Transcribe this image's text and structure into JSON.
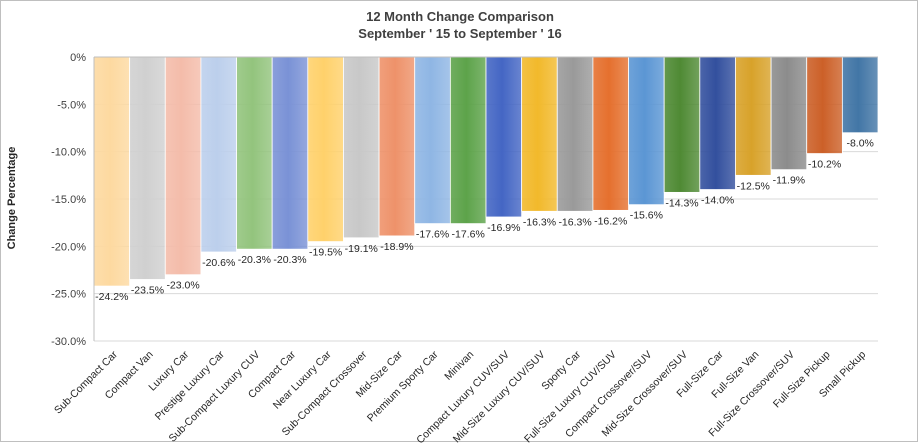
{
  "chart_data": {
    "type": "bar",
    "title": "12 Month Change Comparison",
    "subtitle": "September ' 15 to September ' 16",
    "xlabel": "",
    "ylabel": "Change Percentage",
    "ylim": [
      -30,
      0
    ],
    "yticks": [
      {
        "value": 0,
        "label": "0%"
      },
      {
        "value": -5,
        "label": "-5.0%"
      },
      {
        "value": -10,
        "label": "-10.0%"
      },
      {
        "value": -15,
        "label": "-15.0%"
      },
      {
        "value": -20,
        "label": "-20.0%"
      },
      {
        "value": -25,
        "label": "-25.0%"
      },
      {
        "value": -30,
        "label": "-30.0%"
      }
    ],
    "grid": true,
    "legend": "none",
    "categories": [
      "Sub-Compact Car",
      "Compact Van",
      "Luxury Car",
      "Prestige Luxury Car",
      "Sub-Compact Luxury CUV",
      "Compact Car",
      "Near Luxury Car",
      "Sub-Compact Crossover",
      "Mid-Size Car",
      "Premium Sporty Car",
      "Minivan",
      "Compact Luxury CUV/SUV",
      "Mid-Size Luxury CUV/SUV",
      "Sporty Car",
      "Full-Size Luxury CUV/SUV",
      "Compact Crossover/SUV",
      "Mid-Size Crossover/SUV",
      "Full-Size Car",
      "Full-Size Van",
      "Full-Size Crossover/SUV",
      "Full-Size Pickup",
      "Small Pickup"
    ],
    "values": [
      -24.2,
      -23.5,
      -23.0,
      -20.6,
      -20.3,
      -20.3,
      -19.5,
      -19.1,
      -18.9,
      -17.6,
      -17.6,
      -16.9,
      -16.3,
      -16.3,
      -16.2,
      -15.6,
      -14.3,
      -14.0,
      -12.5,
      -11.9,
      -10.2,
      -8.0
    ],
    "data_labels": [
      "-24.2%",
      "-23.5%",
      "-23.0%",
      "-20.6%",
      "-20.3%",
      "-20.3%",
      "-19.5%",
      "-19.1%",
      "-18.9%",
      "-17.6%",
      "-17.6%",
      "-16.9%",
      "-16.3%",
      "-16.3%",
      "-16.2%",
      "-15.6%",
      "-14.3%",
      "-14.0%",
      "-12.5%",
      "-11.9%",
      "-10.2%",
      "-8.0%"
    ],
    "colors": [
      "#fdd9a0",
      "#d0d0d0",
      "#f4bcaa",
      "#bccfec",
      "#93c47d",
      "#7a92d6",
      "#ffd16b",
      "#c8c8c8",
      "#ee926a",
      "#8fb6e4",
      "#5da34a",
      "#4466c4",
      "#f2b92b",
      "#9a9a9a",
      "#e5702e",
      "#5b96d4",
      "#4f8a34",
      "#33509e",
      "#d8a22a",
      "#8c8c8c",
      "#cc6028",
      "#4276a6"
    ]
  }
}
